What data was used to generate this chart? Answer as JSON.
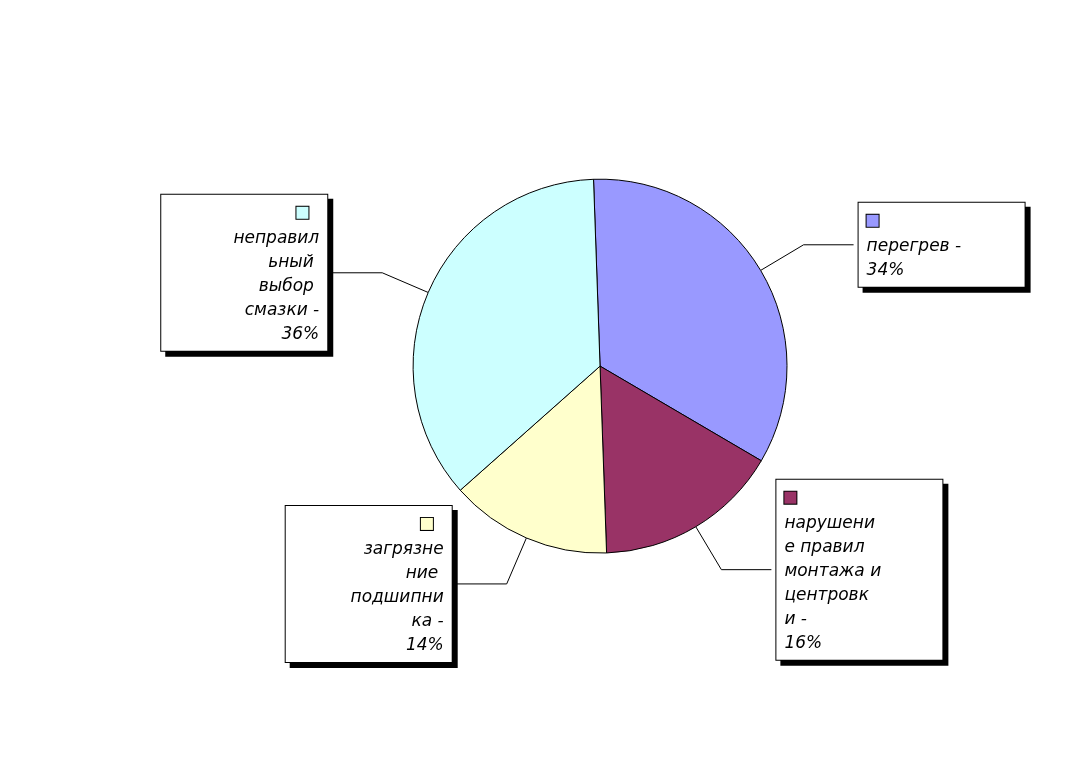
{
  "chart_data": {
    "type": "pie",
    "categories": [
      "перегрев -",
      "нарушение правил монтажа и центровки -",
      "загрязнение подшипника -",
      "неправильный выбор смазки -"
    ],
    "values": [
      34,
      16,
      14,
      36
    ],
    "colors": [
      "#9999ff",
      "#993366",
      "#ffffcc",
      "#ccffff"
    ],
    "value_labels": [
      "34%",
      "16%",
      "14%",
      "36%"
    ],
    "legend": true
  }
}
